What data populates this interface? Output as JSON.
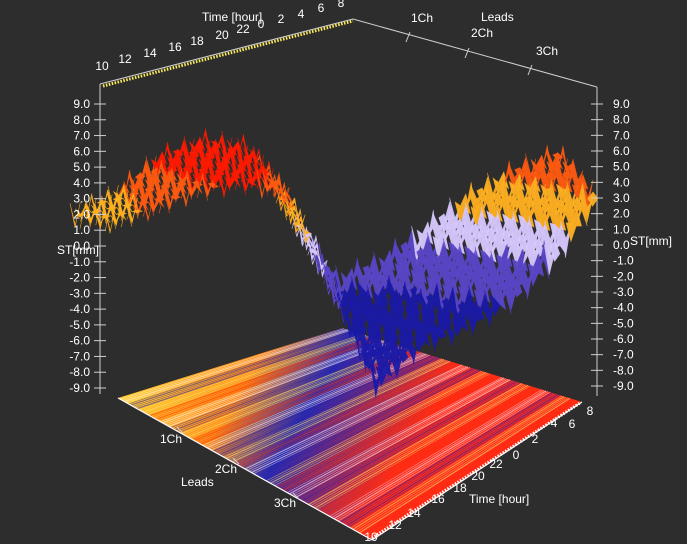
{
  "chart_data": {
    "type": "surface3d",
    "title": "",
    "z_axis": {
      "label": "ST[mm]",
      "ticks": [
        "9.0",
        "8.0",
        "7.0",
        "6.0",
        "5.0",
        "4.0",
        "3.0",
        "2.0",
        "1.0",
        "0.0",
        "-1.0",
        "-2.0",
        "-3.0",
        "-4.0",
        "-5.0",
        "-6.0",
        "-7.0",
        "-8.0",
        "-9.0"
      ],
      "range": [
        -9,
        9
      ]
    },
    "time_axis": {
      "label": "Time [hour]",
      "ticks": [
        "10",
        "12",
        "14",
        "16",
        "18",
        "20",
        "22",
        "0",
        "2",
        "4",
        "6",
        "8"
      ]
    },
    "lead_axis": {
      "label": "Leads",
      "ticks": [
        "1Ch",
        "2Ch",
        "3Ch"
      ]
    },
    "series": [
      {
        "name": "1Ch",
        "x": [
          "10",
          "12",
          "14",
          "16",
          "18",
          "20",
          "22",
          "0",
          "2",
          "4",
          "6",
          "8"
        ],
        "values": [
          2.0,
          2.8,
          3.8,
          4.2,
          3.5,
          -2.0,
          -9.0,
          -6.5,
          -5.5,
          -4.0,
          -1.5,
          2.5
        ]
      },
      {
        "name": "2Ch",
        "x": [
          "10",
          "12",
          "14",
          "16",
          "18",
          "20",
          "22",
          "0",
          "2",
          "4",
          "6",
          "8"
        ],
        "values": [
          1.5,
          2.5,
          4.0,
          4.8,
          4.2,
          -1.0,
          -6.5,
          -5.0,
          -3.5,
          -1.0,
          1.5,
          3.5
        ]
      },
      {
        "name": "3Ch",
        "x": [
          "10",
          "12",
          "14",
          "16",
          "18",
          "20",
          "22",
          "0",
          "2",
          "4",
          "6",
          "8"
        ],
        "values": [
          1.0,
          2.2,
          4.5,
          5.5,
          5.0,
          0.5,
          -3.5,
          -2.5,
          -0.5,
          1.5,
          3.0,
          4.0
        ]
      }
    ],
    "colormap": [
      "#ffdd33",
      "#ff9900",
      "#ff2a00",
      "#ffffff",
      "#1a1aa8"
    ],
    "background": "#2d2d2d",
    "grid": false
  }
}
